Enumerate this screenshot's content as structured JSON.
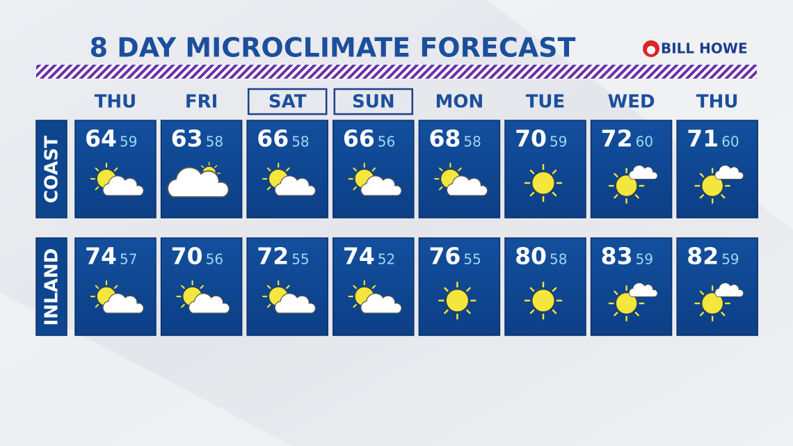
{
  "header": {
    "title": "8 DAY MICROCLIMATE FORECAST",
    "sponsor": "BILL HOWE"
  },
  "days": [
    "THU",
    "FRI",
    "SAT",
    "SUN",
    "MON",
    "TUE",
    "WED",
    "THU"
  ],
  "rows": [
    {
      "label": "COAST",
      "highs": [
        64,
        63,
        66,
        66,
        68,
        70,
        72,
        71
      ],
      "lows": [
        59,
        58,
        58,
        56,
        58,
        59,
        60,
        60
      ]
    },
    {
      "label": "INLAND",
      "highs": [
        74,
        70,
        72,
        74,
        76,
        80,
        83,
        82
      ],
      "lows": [
        57,
        56,
        55,
        52,
        55,
        58,
        59,
        59
      ]
    }
  ]
}
